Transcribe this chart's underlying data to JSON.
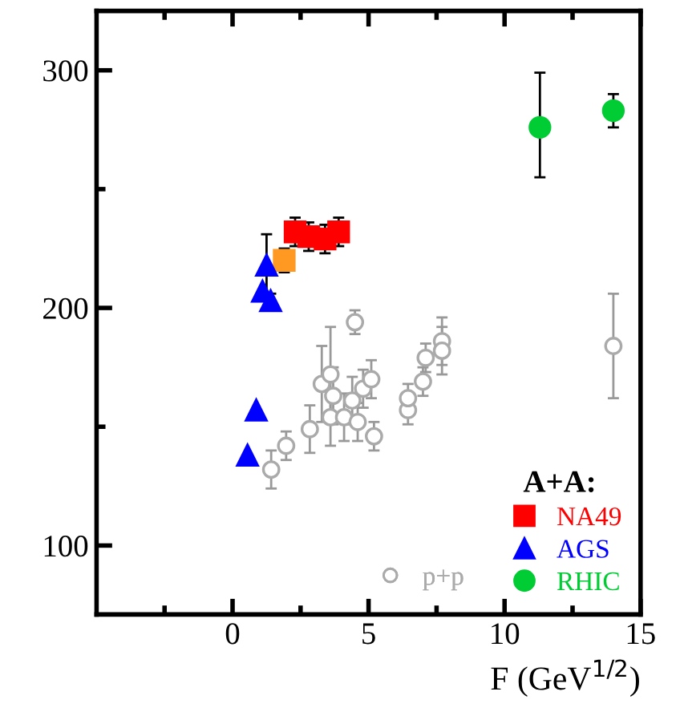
{
  "chart_data": {
    "type": "scatter",
    "xlabel": "F (GeV$^{1/2}$)",
    "xlim": [
      -5,
      15
    ],
    "xticks": [
      0,
      5,
      10,
      15
    ],
    "ylim": [
      71,
      325
    ],
    "yticks": [
      100,
      200,
      300
    ],
    "legend": "bottom right",
    "legend_title": "A+A:",
    "grid": false,
    "series": [
      {
        "name": "p+p",
        "color": "#aaaaaa",
        "marker": "circle",
        "x": [
          1.42,
          1.97,
          2.84,
          3.28,
          3.6,
          3.7,
          3.6,
          4.1,
          4.4,
          4.5,
          4.6,
          4.8,
          5.1,
          5.2,
          6.45,
          6.45,
          7.0,
          7.1,
          7.7,
          7.7,
          14.0
        ],
        "values": [
          132,
          142,
          149,
          168,
          172,
          163,
          154,
          154,
          161,
          194,
          152,
          166,
          170,
          146,
          157,
          162,
          169,
          179,
          186,
          182,
          184
        ],
        "errors": [
          8,
          6,
          10,
          16,
          20,
          12,
          12,
          10,
          10,
          5,
          8,
          8,
          8,
          6,
          6,
          6,
          6,
          6,
          10,
          10,
          22
        ]
      },
      {
        "color": "#ff9922",
        "marker": "square",
        "x": [
          1.9
        ],
        "values": [
          220
        ],
        "errors": [
          5
        ]
      },
      {
        "name": "NA49",
        "color": "#ff0000",
        "marker": "square",
        "x": [
          2.3,
          2.8,
          3.4,
          3.9
        ],
        "values": [
          232,
          230,
          229,
          232
        ],
        "errors": [
          6,
          6,
          6,
          6
        ]
      },
      {
        "name": "AGS",
        "color": "#0000ff",
        "marker": "triangle",
        "x": [
          1.25,
          1.1,
          1.4,
          0.87,
          0.55
        ],
        "values": [
          218,
          207,
          203,
          157,
          138
        ],
        "errors": [
          13,
          null,
          3,
          null,
          null
        ]
      },
      {
        "name": "RHIC",
        "color": "#00cc33",
        "marker": "circle",
        "x": [
          11.3,
          14.0
        ],
        "values": [
          276,
          283
        ],
        "errors": [
          [
            255,
            299
          ],
          7
        ]
      }
    ]
  }
}
